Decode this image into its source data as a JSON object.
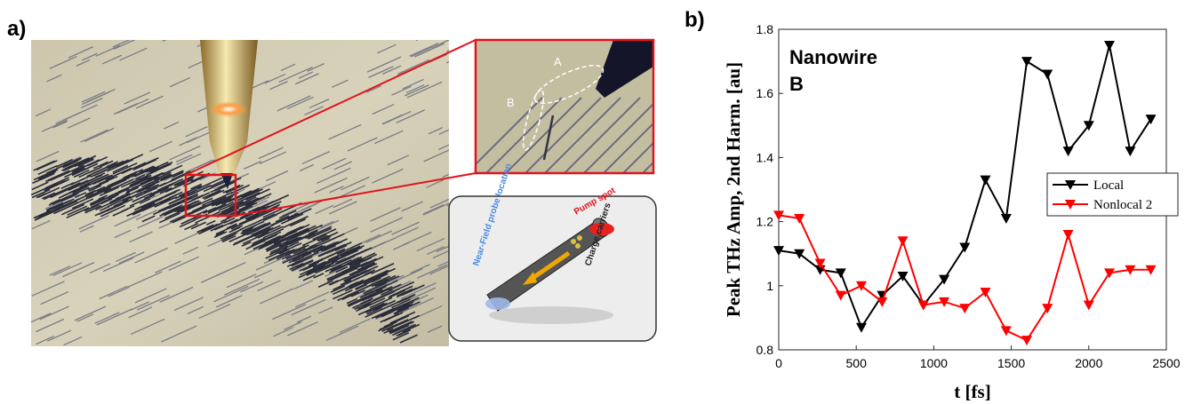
{
  "figure": {
    "panel_a": "a)",
    "panel_b": "b)",
    "inset_label_a": "A",
    "inset_label_b": "B",
    "pump_label": "Pump spot",
    "probe_label": "Near-Field probe location",
    "carriers_label": "Charge carriers"
  },
  "chart_data": {
    "type": "line",
    "annotations": [
      "Nanowire",
      "B"
    ],
    "xlabel": "t [fs]",
    "ylabel": "Peak THz Amp, 2nd Harm. [au]",
    "x": [
      0,
      133,
      267,
      400,
      533,
      667,
      800,
      933,
      1067,
      1200,
      1333,
      1467,
      1600,
      1733,
      1867,
      2000,
      2133,
      2267,
      2400
    ],
    "series": [
      {
        "name": "Local",
        "color": "#000000",
        "values": [
          1.11,
          1.1,
          1.05,
          1.04,
          0.87,
          0.97,
          1.03,
          0.94,
          1.02,
          1.12,
          1.33,
          1.21,
          1.7,
          1.66,
          1.42,
          1.5,
          1.75,
          1.42,
          1.52
        ]
      },
      {
        "name": "Nonlocal 2",
        "color": "#ff0000",
        "values": [
          1.22,
          1.21,
          1.07,
          0.97,
          1.0,
          0.95,
          1.14,
          0.94,
          0.95,
          0.93,
          0.98,
          0.86,
          0.83,
          0.93,
          1.16,
          0.94,
          1.04,
          1.05,
          1.05
        ]
      }
    ],
    "xlim": [
      0,
      2500
    ],
    "xticks": [
      0,
      500,
      1000,
      1500,
      2000,
      2500
    ],
    "ylim": [
      0.8,
      1.8
    ],
    "yticks": [
      0.8,
      1,
      1.2,
      1.4,
      1.6,
      1.8
    ],
    "marker": "triangle-down",
    "legend": "center-right"
  }
}
